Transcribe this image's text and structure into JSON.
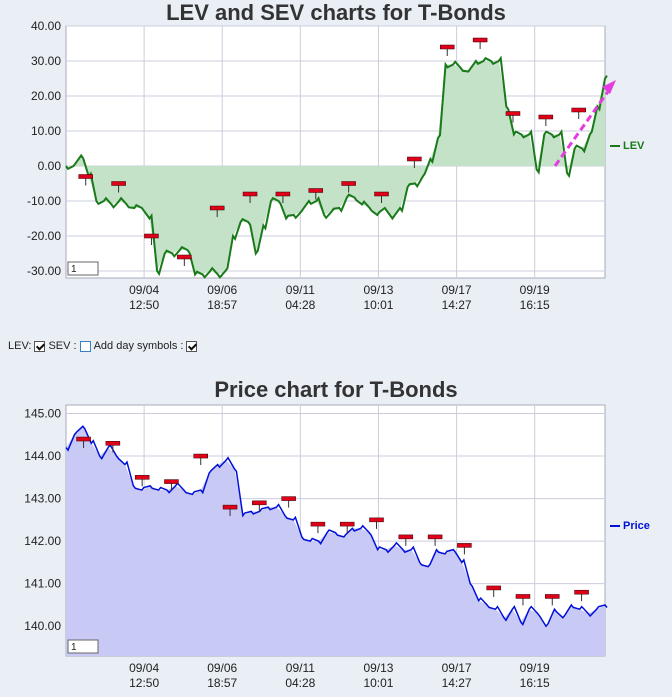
{
  "lev_chart": {
    "title": "LEV and SEV charts for T-Bonds",
    "legend": "LEV",
    "page_box": "1",
    "line_color": "#1a7a1a",
    "fill_color": "#c4e2c8",
    "marker_color": "#e0001a",
    "arrow_color": "#e43ce0",
    "chart_data": {
      "type": "line",
      "title": "LEV and SEV charts for T-Bonds",
      "ylim": [
        -32,
        40
      ],
      "yticks": [
        "40.00",
        "30.00",
        "20.00",
        "10.00",
        "0.00",
        "-10.00",
        "-20.00",
        "-30.00"
      ],
      "xticks": [
        {
          "date": "09/04",
          "time": "12:50"
        },
        {
          "date": "09/06",
          "time": "18:57"
        },
        {
          "date": "09/11",
          "time": "04:28"
        },
        {
          "date": "09/13",
          "time": "10:01"
        },
        {
          "date": "09/17",
          "time": "14:27"
        },
        {
          "date": "09/19",
          "time": "16:15"
        }
      ],
      "series": [
        {
          "name": "LEV",
          "values": [
            0,
            0,
            3,
            -3,
            -10,
            -10,
            -11,
            -10,
            -11,
            -12,
            -12,
            -15,
            -30,
            -25,
            -25,
            -24,
            -24,
            -31,
            -31,
            -30,
            -31,
            -30,
            -20,
            -16,
            -16,
            -25,
            -17,
            -10,
            -10,
            -15,
            -14,
            -13,
            -10,
            -10,
            -14,
            -13,
            -12,
            -9,
            -9,
            -11,
            -12,
            -14,
            -12,
            -15,
            -12,
            -6,
            -5,
            -3,
            2,
            8,
            29,
            29,
            28,
            27,
            30,
            30,
            30,
            30,
            17,
            9,
            9,
            9,
            -1,
            9,
            9,
            9,
            -2,
            5,
            5,
            9,
            17,
            25
          ]
        }
      ],
      "markers": [
        -3,
        -5,
        -20,
        -26,
        -12,
        -8,
        -8,
        -7,
        -5,
        -8,
        2,
        34,
        36,
        15,
        14,
        16
      ]
    }
  },
  "controls": {
    "lev_label": "LEV:",
    "sev_label": "SEV :",
    "day_label": "Add day symbols :",
    "lev_checked": true,
    "sev_checked": false,
    "day_checked": true
  },
  "price_chart": {
    "title": "Price chart for T-Bonds",
    "legend": "Price",
    "page_box": "1",
    "line_color": "#0010d8",
    "fill_color": "#c8c9f4",
    "marker_color": "#e0001a",
    "chart_data": {
      "type": "line",
      "title": "Price chart for T-Bonds",
      "ylim": [
        139.3,
        145.2
      ],
      "yticks": [
        "145.00",
        "144.00",
        "143.00",
        "142.00",
        "141.00",
        "140.00"
      ],
      "xticks": [
        {
          "date": "09/04",
          "time": "12:50"
        },
        {
          "date": "09/06",
          "time": "18:57"
        },
        {
          "date": "09/11",
          "time": "04:28"
        },
        {
          "date": "09/13",
          "time": "10:01"
        },
        {
          "date": "09/17",
          "time": "14:27"
        },
        {
          "date": "09/19",
          "time": "16:15"
        }
      ],
      "series": [
        {
          "name": "Price",
          "values": [
            144.2,
            144.5,
            144.7,
            144.3,
            144.0,
            144.2,
            144.0,
            143.8,
            143.3,
            143.2,
            143.3,
            143.2,
            143.2,
            143.3,
            143.2,
            143.1,
            143.2,
            143.6,
            143.8,
            143.9,
            143.7,
            142.6,
            142.7,
            142.7,
            142.8,
            142.8,
            142.6,
            142.5,
            142.1,
            142.0,
            142.0,
            142.2,
            142.2,
            142.1,
            142.3,
            142.3,
            142.2,
            141.8,
            141.8,
            141.9,
            141.8,
            141.8,
            141.5,
            141.4,
            141.8,
            141.7,
            141.8,
            141.5,
            141.0,
            140.6,
            140.5,
            140.4,
            140.2,
            140.4,
            140.1,
            140.4,
            140.3,
            140.0,
            140.4,
            140.2,
            140.5,
            140.4,
            140.3,
            140.4,
            140.5
          ]
        }
      ],
      "markers": [
        144.4,
        144.3,
        143.5,
        143.4,
        144.0,
        142.8,
        142.9,
        143.0,
        142.4,
        142.4,
        142.5,
        142.1,
        142.1,
        141.9,
        140.9,
        140.7,
        140.7,
        140.8
      ]
    }
  }
}
